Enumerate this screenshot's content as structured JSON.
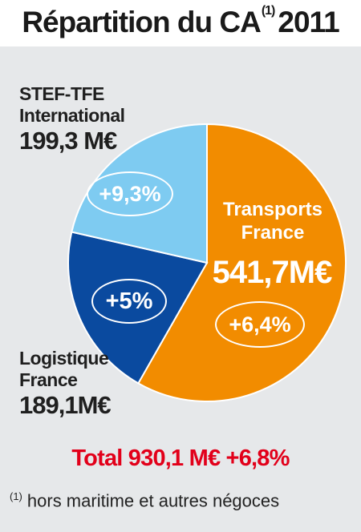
{
  "title": {
    "text": "Répartition du CA",
    "note_ref": "(1)",
    "year": "2011"
  },
  "chart_data": {
    "type": "pie",
    "title": "Répartition du CA 2011",
    "unit": "M€",
    "slices": [
      {
        "name": "Transports France",
        "value": 541.7,
        "value_label": "541,7M€",
        "growth": "+6,4%",
        "color": "#f28c00"
      },
      {
        "name": "Logistique France",
        "value": 189.1,
        "value_label": "189,1M€",
        "growth": "+5%",
        "color": "#0a4a9f"
      },
      {
        "name": "STEF-TFE International",
        "value": 199.3,
        "value_label": "199,3 M€",
        "growth": "+9,3%",
        "color": "#7ecbf1"
      }
    ],
    "total": {
      "value": 930.1,
      "growth": "+6,8%"
    }
  },
  "labels": {
    "international": {
      "line1": "STEF-TFE",
      "line2": "International",
      "value": "199,3 M€",
      "growth": "+9,3%"
    },
    "transports": {
      "line1": "Transports",
      "line2": "France",
      "value": "541,7M€",
      "growth": "+6,4%"
    },
    "logistique": {
      "line1": "Logistique",
      "line2": "France",
      "value": "189,1M€",
      "growth": "+5%"
    }
  },
  "total_text": "Total 930,1 M€ +6,8%",
  "footnote": {
    "ref": "(1)",
    "text": "hors maritime et autres négoces"
  }
}
